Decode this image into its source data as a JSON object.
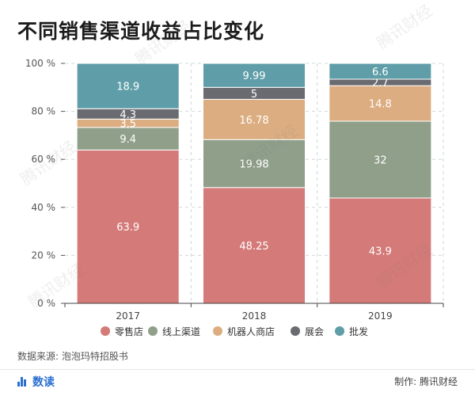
{
  "title": "不同销售渠道收益占比变化",
  "watermark_text": "腾讯财经",
  "source_text": "数据来源: 泡泡玛特招股书",
  "footer": {
    "brand_label": "数读",
    "credit_text": "制作: 腾讯财经"
  },
  "colors": {
    "零售店": "#d47a78",
    "线上渠道": "#8f9f8a",
    "机器人商店": "#dcad80",
    "展会": "#6a6b70",
    "批发": "#5f9ea8"
  },
  "chart_data": {
    "type": "bar",
    "stacked": true,
    "title": "不同销售渠道收益占比变化",
    "categories": [
      "2017",
      "2018",
      "2019"
    ],
    "series": [
      {
        "name": "零售店",
        "values": [
          63.9,
          48.25,
          43.9
        ]
      },
      {
        "name": "线上渠道",
        "values": [
          9.4,
          19.98,
          32
        ]
      },
      {
        "name": "机器人商店",
        "values": [
          3.5,
          16.78,
          14.8
        ]
      },
      {
        "name": "展会",
        "values": [
          4.3,
          5,
          2.7
        ]
      },
      {
        "name": "批发",
        "values": [
          18.9,
          9.99,
          6.6
        ]
      }
    ],
    "labels": [
      [
        "63.9",
        "9.4",
        "3.5",
        "4.3",
        "18.9"
      ],
      [
        "48.25",
        "19.98",
        "16.78",
        "5",
        "9.99"
      ],
      [
        "43.9",
        "32",
        "14.8",
        "2.7",
        "6.6"
      ]
    ],
    "ylim": [
      0,
      100
    ],
    "yticks": [
      0,
      20,
      40,
      60,
      80,
      100
    ],
    "ytick_labels": [
      "0 %",
      "20 %",
      "40 %",
      "60 %",
      "80 %",
      "100 %"
    ],
    "xlabel": "",
    "ylabel": "",
    "legend": [
      "零售店",
      "线上渠道",
      "机器人商店",
      "展会",
      "批发"
    ],
    "legend_position": "bottom"
  }
}
